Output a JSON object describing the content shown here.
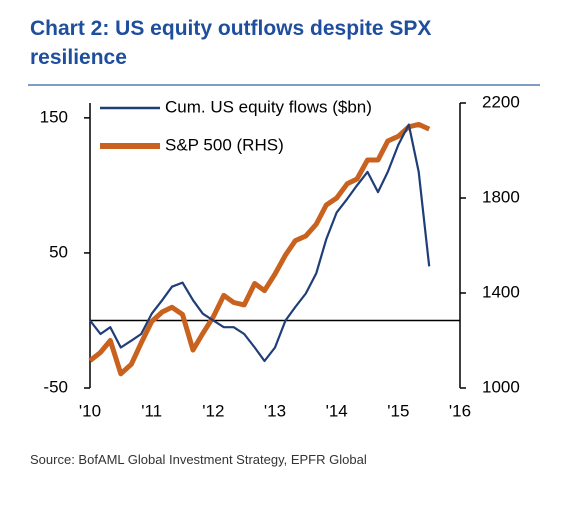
{
  "chart_data": {
    "type": "line",
    "title": "Chart 2: US equity outflows despite SPX resilience",
    "source": "Source: BofAML Global Investment Strategy, EPFR Global",
    "x": [
      2010.0,
      2010.17,
      2010.33,
      2010.5,
      2010.67,
      2010.83,
      2011.0,
      2011.17,
      2011.33,
      2011.5,
      2011.67,
      2011.83,
      2012.0,
      2012.17,
      2012.33,
      2012.5,
      2012.67,
      2012.83,
      2013.0,
      2013.17,
      2013.33,
      2013.5,
      2013.67,
      2013.83,
      2014.0,
      2014.17,
      2014.33,
      2014.5,
      2014.67,
      2014.83,
      2015.0,
      2015.17,
      2015.33,
      2015.5
    ],
    "series": [
      {
        "name": "Cum. US equity flows ($bn)",
        "color": "#1f3e78",
        "values": [
          0,
          -10,
          -5,
          -20,
          -15,
          -10,
          5,
          15,
          25,
          28,
          15,
          5,
          0,
          -5,
          -5,
          -10,
          -20,
          -30,
          -20,
          0,
          10,
          20,
          35,
          60,
          80,
          90,
          100,
          110,
          95,
          110,
          130,
          145,
          110,
          40
        ]
      },
      {
        "name": "S&P 500 (RHS)",
        "color": "#c8621e",
        "axis": "y2",
        "values": [
          1115,
          1150,
          1200,
          1060,
          1100,
          1190,
          1280,
          1320,
          1340,
          1310,
          1160,
          1230,
          1300,
          1390,
          1360,
          1350,
          1440,
          1410,
          1480,
          1560,
          1620,
          1640,
          1690,
          1770,
          1800,
          1860,
          1880,
          1960,
          1960,
          2040,
          2060,
          2100,
          2110,
          2090
        ]
      }
    ],
    "xlim": [
      2010,
      2016
    ],
    "xticks": [
      {
        "value": 2010,
        "label": "'10"
      },
      {
        "value": 2011,
        "label": "'11"
      },
      {
        "value": 2012,
        "label": "'12"
      },
      {
        "value": 2013,
        "label": "'13"
      },
      {
        "value": 2014,
        "label": "'14"
      },
      {
        "value": 2015,
        "label": "'15"
      },
      {
        "value": 2016,
        "label": "'16"
      }
    ],
    "ylim": [
      -50,
      161
    ],
    "yticks": [
      -50,
      50,
      150
    ],
    "y2lim": [
      1000,
      2200
    ],
    "y2ticks": [
      1000,
      1400,
      1800,
      2200
    ]
  }
}
